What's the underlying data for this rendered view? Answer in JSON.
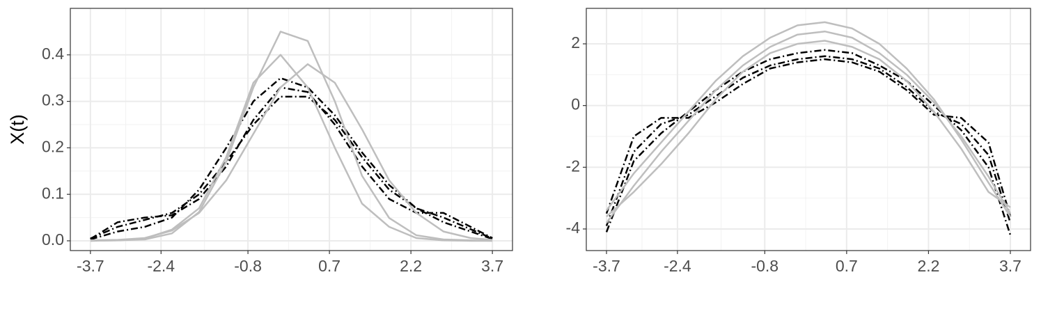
{
  "chart_data": [
    {
      "type": "line",
      "y_label": "X(t)",
      "x": [
        -3.7,
        -3.2,
        -2.7,
        -2.2,
        -1.7,
        -1.2,
        -0.7,
        -0.2,
        0.3,
        0.8,
        1.3,
        1.8,
        2.3,
        2.8,
        3.3,
        3.7
      ],
      "xlim": [
        -4.07,
        4.07
      ],
      "xticks": [
        -3.7,
        -2.4,
        -0.8,
        0.7,
        2.2,
        3.7
      ],
      "ylim": [
        -0.021,
        0.5
      ],
      "yticks": [
        {
          "value": 0,
          "label": "0.0"
        },
        0.1,
        0.2,
        0.3,
        0.4
      ],
      "grid": true,
      "series": [
        {
          "color": "#000000",
          "dashed": true,
          "values": [
            0.005,
            0.03,
            0.045,
            0.06,
            0.1,
            0.17,
            0.25,
            0.31,
            0.31,
            0.26,
            0.18,
            0.11,
            0.07,
            0.05,
            0.025,
            0.005
          ]
        },
        {
          "color": "#000000",
          "dashed": true,
          "values": [
            0.004,
            0.04,
            0.05,
            0.055,
            0.09,
            0.16,
            0.26,
            0.33,
            0.32,
            0.25,
            0.16,
            0.09,
            0.06,
            0.06,
            0.03,
            0.006
          ]
        },
        {
          "color": "#000000",
          "dashed": true,
          "values": [
            0.003,
            0.02,
            0.03,
            0.05,
            0.11,
            0.2,
            0.3,
            0.35,
            0.33,
            0.27,
            0.19,
            0.12,
            0.07,
            0.04,
            0.02,
            0.004
          ]
        },
        {
          "color": "#bebebe",
          "dashed": false,
          "values": [
            0,
            0.001,
            0.003,
            0.016,
            0.062,
            0.17,
            0.33,
            0.45,
            0.43,
            0.3,
            0.14,
            0.049,
            0.012,
            0.003,
            0.001,
            0
          ]
        },
        {
          "color": "#bebebe",
          "dashed": false,
          "values": [
            0,
            0.001,
            0.005,
            0.024,
            0.07,
            0.18,
            0.34,
            0.4,
            0.33,
            0.2,
            0.08,
            0.03,
            0.006,
            0.001,
            0,
            0
          ]
        },
        {
          "color": "#bebebe",
          "dashed": false,
          "values": [
            0.001,
            0.002,
            0.006,
            0.022,
            0.06,
            0.13,
            0.23,
            0.33,
            0.38,
            0.34,
            0.24,
            0.13,
            0.06,
            0.02,
            0.006,
            0.002
          ]
        }
      ]
    },
    {
      "type": "line",
      "x": [
        -3.7,
        -3.2,
        -2.7,
        -2.2,
        -1.7,
        -1.2,
        -0.7,
        -0.2,
        0.3,
        0.8,
        1.3,
        1.8,
        2.3,
        2.8,
        3.3,
        3.7
      ],
      "xlim": [
        -4.07,
        4.07
      ],
      "xticks": [
        -3.7,
        -2.4,
        -0.8,
        0.7,
        2.2,
        3.7
      ],
      "ylim": [
        -4.7,
        3.15
      ],
      "yticks": [
        -4,
        -2,
        0,
        2
      ],
      "grid": true,
      "series": [
        {
          "color": "#000000",
          "dashed": true,
          "values": [
            -3.9,
            -1.5,
            -0.6,
            -0.3,
            0.3,
            0.9,
            1.3,
            1.5,
            1.6,
            1.5,
            1.2,
            0.6,
            -0.2,
            -0.6,
            -1.6,
            -3.8
          ]
        },
        {
          "color": "#000000",
          "dashed": true,
          "values": [
            -3.5,
            -1.0,
            -0.4,
            -0.4,
            0.1,
            0.7,
            1.2,
            1.4,
            1.5,
            1.4,
            1.1,
            0.5,
            -0.3,
            -0.4,
            -1.2,
            -3.6
          ]
        },
        {
          "color": "#000000",
          "dashed": true,
          "values": [
            -4.1,
            -1.8,
            -0.9,
            -0.2,
            0.5,
            1.1,
            1.5,
            1.7,
            1.8,
            1.7,
            1.3,
            0.8,
            0.0,
            -0.8,
            -2.0,
            -4.2
          ]
        },
        {
          "color": "#bebebe",
          "dashed": false,
          "values": [
            -3.8,
            -2.6,
            -1.5,
            -0.5,
            0.5,
            1.3,
            1.9,
            2.3,
            2.4,
            2.2,
            1.7,
            1.0,
            0.1,
            -1.0,
            -2.3,
            -3.5
          ]
        },
        {
          "color": "#bebebe",
          "dashed": false,
          "values": [
            -3.4,
            -2.2,
            -1.2,
            -0.2,
            0.8,
            1.6,
            2.2,
            2.6,
            2.7,
            2.5,
            2.0,
            1.2,
            0.2,
            -1.1,
            -2.5,
            -3.6
          ]
        },
        {
          "color": "#bebebe",
          "dashed": false,
          "values": [
            -3.6,
            -2.8,
            -1.9,
            -0.9,
            0.2,
            1.1,
            1.7,
            2.0,
            2.1,
            1.9,
            1.5,
            0.8,
            -0.2,
            -1.4,
            -2.8,
            -3.3
          ]
        }
      ]
    }
  ]
}
